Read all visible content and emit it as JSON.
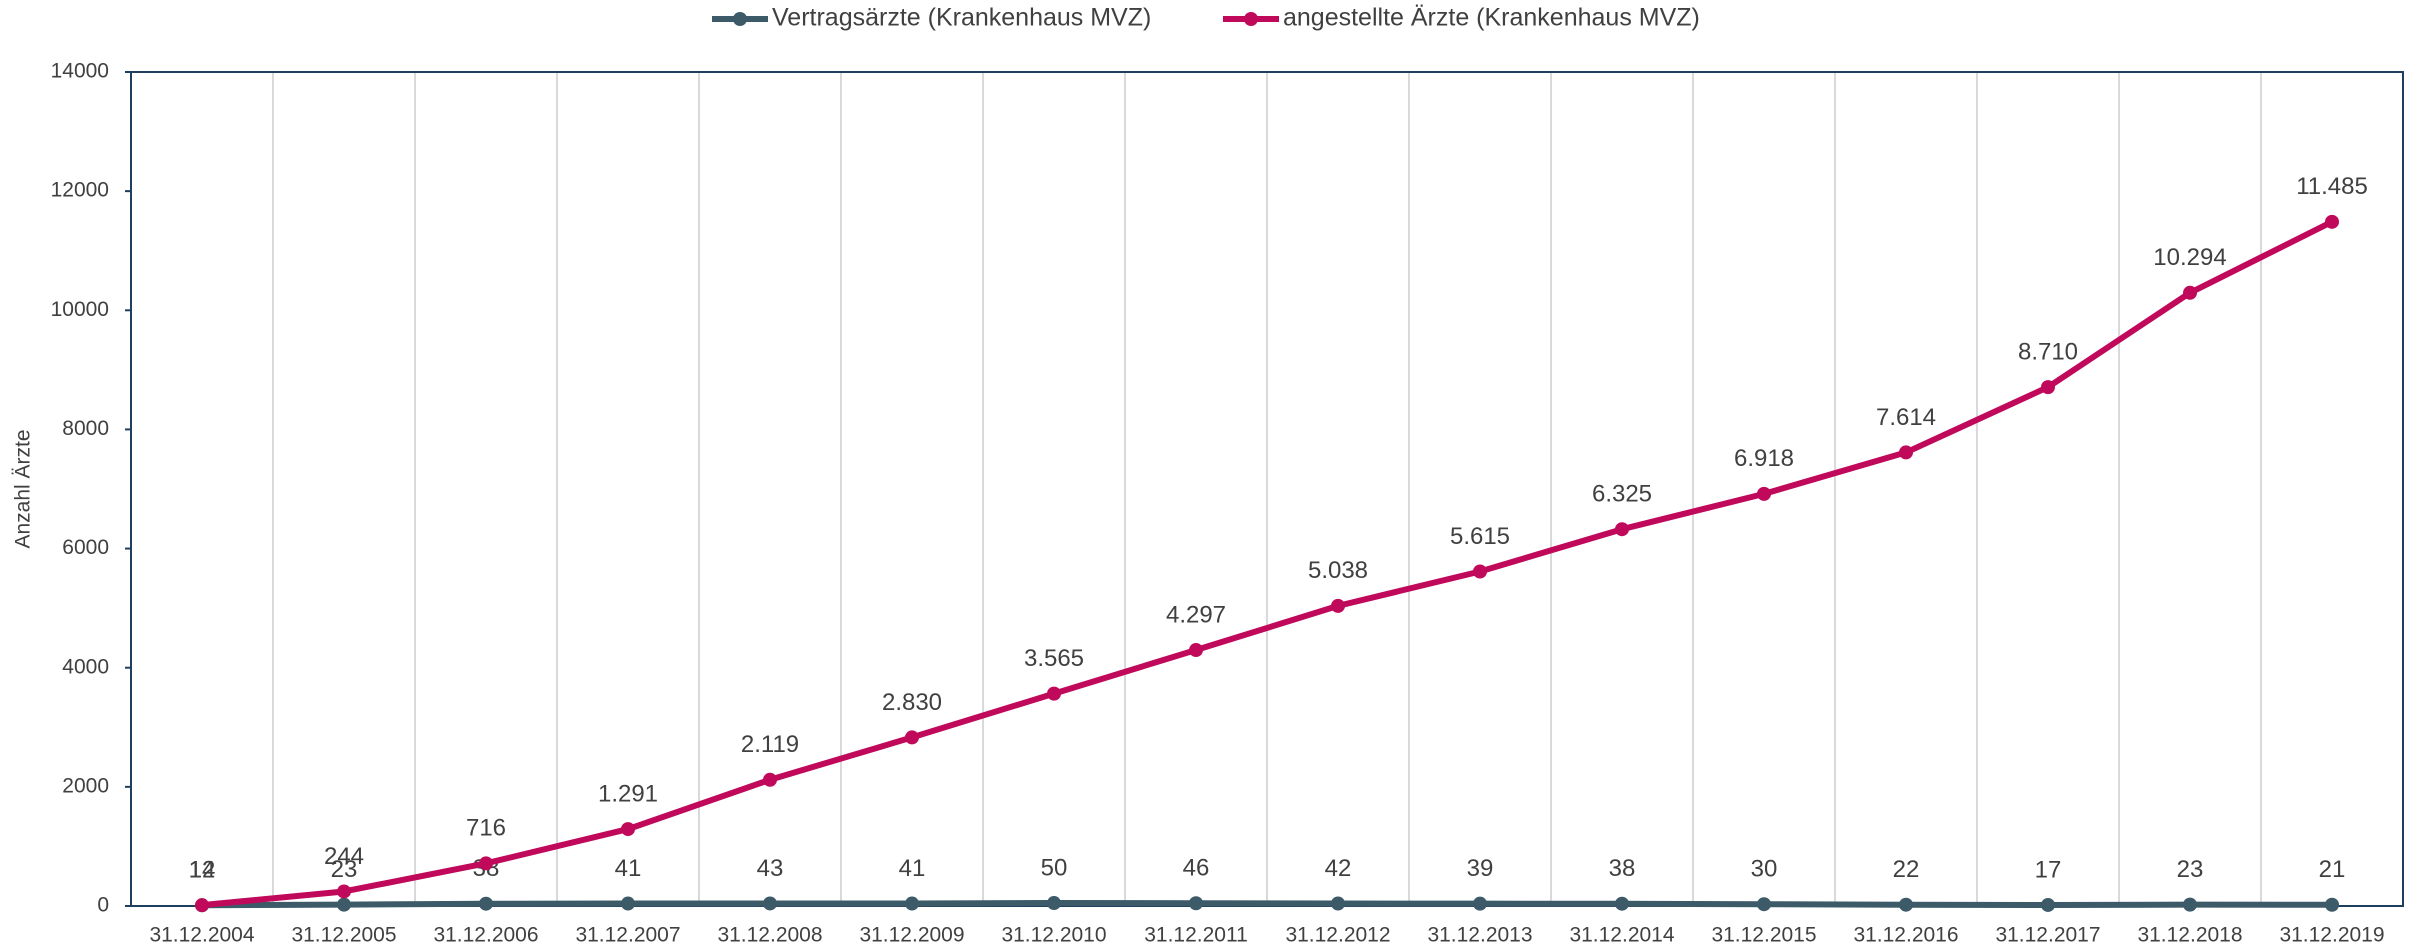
{
  "chart_data": {
    "type": "line",
    "ylabel": "Anzahl Ärzte",
    "categories": [
      "31.12.2004",
      "31.12.2005",
      "31.12.2006",
      "31.12.2007",
      "31.12.2008",
      "31.12.2009",
      "31.12.2010",
      "31.12.2011",
      "31.12.2012",
      "31.12.2013",
      "31.12.2014",
      "31.12.2015",
      "31.12.2016",
      "31.12.2017",
      "31.12.2018",
      "31.12.2019"
    ],
    "series": [
      {
        "name": "Vertragsärzte (Krankenhaus MVZ)",
        "color": "#3d5a68",
        "values": [
          12,
          23,
          38,
          41,
          43,
          41,
          50,
          46,
          42,
          39,
          38,
          30,
          22,
          17,
          23,
          21
        ]
      },
      {
        "name": "angestellte Ärzte (Krankenhaus MVZ)",
        "color": "#c0095b",
        "values": [
          14,
          244,
          716,
          1291,
          2119,
          2830,
          3565,
          4297,
          5038,
          5615,
          6325,
          6918,
          7614,
          8710,
          10294,
          11485
        ],
        "value_labels": [
          "14",
          "244",
          "716",
          "1.291",
          "2.119",
          "2.830",
          "3.565",
          "4.297",
          "5.038",
          "5.615",
          "6.325",
          "6.918",
          "7.614",
          "8.710",
          "10.294",
          "11.485"
        ]
      }
    ],
    "ylim": [
      0,
      14000
    ],
    "yticks": [
      0,
      2000,
      4000,
      6000,
      8000,
      10000,
      12000,
      14000
    ],
    "grid": "x",
    "legend": "top"
  }
}
